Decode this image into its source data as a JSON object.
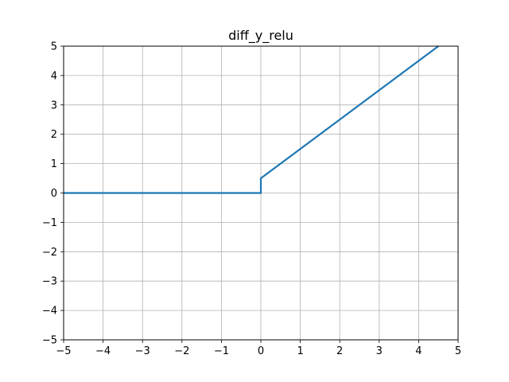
{
  "chart_data": {
    "type": "line",
    "title": "diff_y_relu",
    "xlabel": "",
    "ylabel": "",
    "xlim": [
      -5,
      5
    ],
    "ylim": [
      -5,
      5
    ],
    "xticks": [
      -5,
      -4,
      -3,
      -2,
      -1,
      0,
      1,
      2,
      3,
      4,
      5
    ],
    "yticks": [
      -5,
      -4,
      -3,
      -2,
      -1,
      0,
      1,
      2,
      3,
      4,
      5
    ],
    "xtick_labels": [
      "−5",
      "−4",
      "−3",
      "−2",
      "−1",
      "0",
      "1",
      "2",
      "3",
      "4",
      "5"
    ],
    "ytick_labels": [
      "−5",
      "−4",
      "−3",
      "−2",
      "−1",
      "0",
      "1",
      "2",
      "3",
      "4",
      "5"
    ],
    "grid": true,
    "series": [
      {
        "color": "#1f77b4",
        "x": [
          -5,
          0,
          0,
          4.5
        ],
        "y": [
          0,
          0,
          0.5,
          5
        ]
      }
    ]
  }
}
